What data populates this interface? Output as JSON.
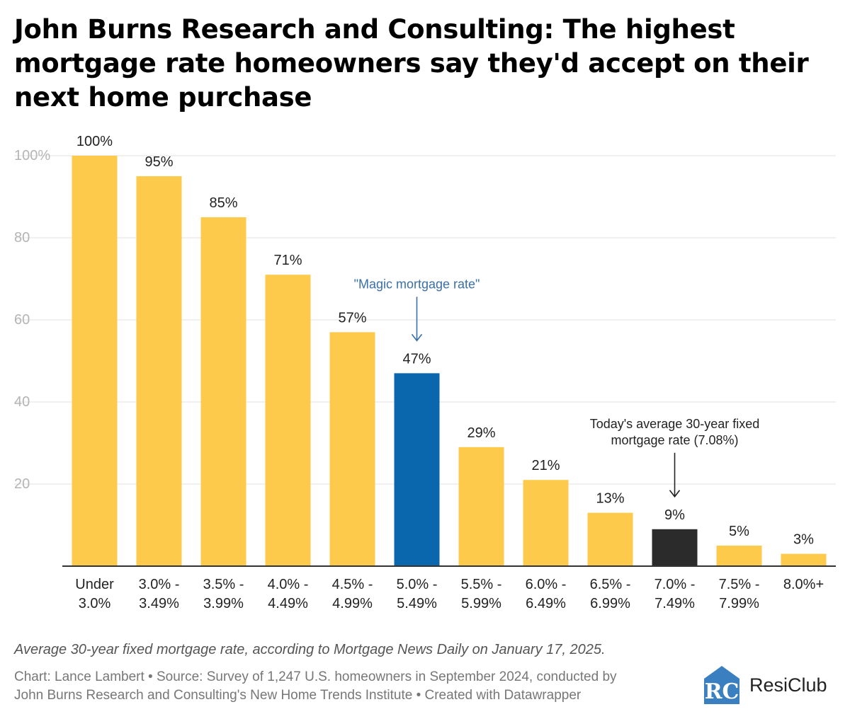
{
  "title": "John Burns Research and Consulting: The highest mortgage rate homeowners say they'd accept on their next home purchase",
  "chart_data": {
    "type": "bar",
    "categories": [
      [
        "Under",
        "3.0%"
      ],
      [
        "3.0% -",
        "3.49%"
      ],
      [
        "3.5% -",
        "3.99%"
      ],
      [
        "4.0% -",
        "4.49%"
      ],
      [
        "4.5% -",
        "4.99%"
      ],
      [
        "5.0% -",
        "5.49%"
      ],
      [
        "5.5% -",
        "5.99%"
      ],
      [
        "6.0% -",
        "6.49%"
      ],
      [
        "6.5% -",
        "6.99%"
      ],
      [
        "7.0% -",
        "7.49%"
      ],
      [
        "7.5% -",
        "7.99%"
      ],
      [
        "8.0%+"
      ]
    ],
    "values": [
      100,
      95,
      85,
      71,
      57,
      47,
      29,
      21,
      13,
      9,
      5,
      3
    ],
    "value_labels": [
      "100%",
      "95%",
      "85%",
      "71%",
      "57%",
      "47%",
      "29%",
      "21%",
      "13%",
      "9%",
      "5%",
      "3%"
    ],
    "ylim": [
      0,
      100
    ],
    "yticks": [
      20,
      40,
      60,
      80,
      100
    ],
    "ytick_labels": [
      "20",
      "40",
      "60",
      "80",
      "100%"
    ],
    "grid": true,
    "legend": false,
    "colors": {
      "default": "#fdca4c",
      "highlight_magic": "#0b67ad",
      "highlight_today": "#2b2b2b",
      "annotation_blue": "#3a6fa8",
      "grid": "#e2e2e2",
      "axis_tick": "#b5b5b5"
    },
    "highlight_indices": {
      "magic": 5,
      "today": 9
    },
    "annotations": [
      {
        "text_lines": [
          "\"Magic mortgage rate\""
        ],
        "category_index": 5,
        "color": "#3a6fa8"
      },
      {
        "text_lines": [
          "Today's average 30-year fixed",
          "mortgage rate (7.08%)"
        ],
        "category_index": 9,
        "color": "#222222"
      }
    ]
  },
  "note": "Average 30-year fixed mortgage rate, according to Mortgage News Daily on January 17, 2025.",
  "credits_line1": "Chart: Lance Lambert • Source: Survey of 1,247 U.S. homeowners in September 2024, conducted by",
  "credits_line2": "John Burns Research and Consulting's New Home Trends Institute • Created with Datawrapper",
  "logo": {
    "mark": "RC",
    "name": "ResiClub",
    "color": "#3a7fbf"
  }
}
